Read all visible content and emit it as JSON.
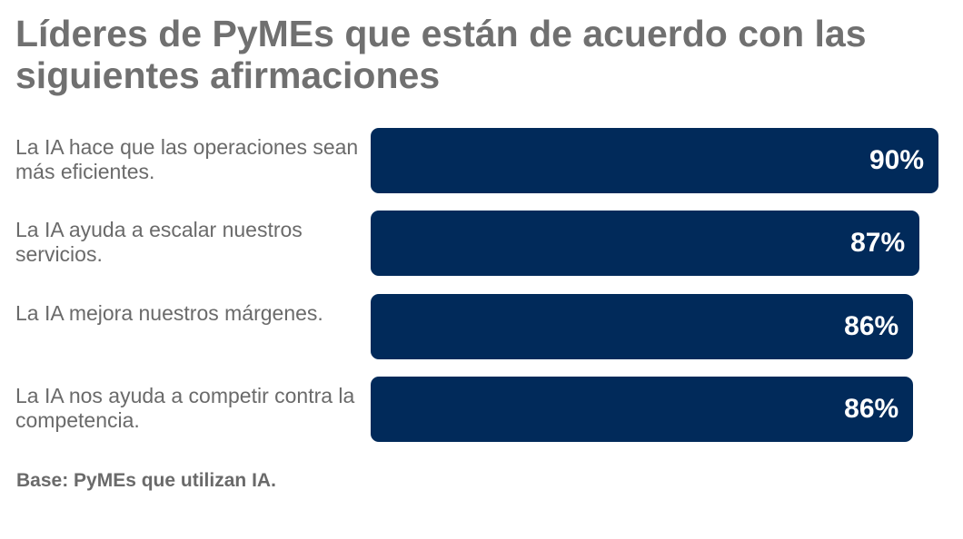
{
  "chart_data": {
    "type": "bar",
    "orientation": "horizontal",
    "title": "Líderes de PyMEs que están de acuerdo con las siguientes afirmaciones",
    "categories": [
      "La IA hace que las operaciones sean más eficientes.",
      "La IA ayuda a escalar nuestros servicios.",
      "La IA mejora nuestros márgenes.",
      "La IA nos ayuda a competir contra la competencia."
    ],
    "values": [
      90,
      87,
      86,
      86
    ],
    "value_labels": [
      "90%",
      "87%",
      "86%",
      "86%"
    ],
    "unit": "%",
    "xlim": [
      0,
      90
    ],
    "grid": false,
    "bar_color": "#012a5a",
    "footnote": "Base: PyMEs que utilizan IA."
  }
}
